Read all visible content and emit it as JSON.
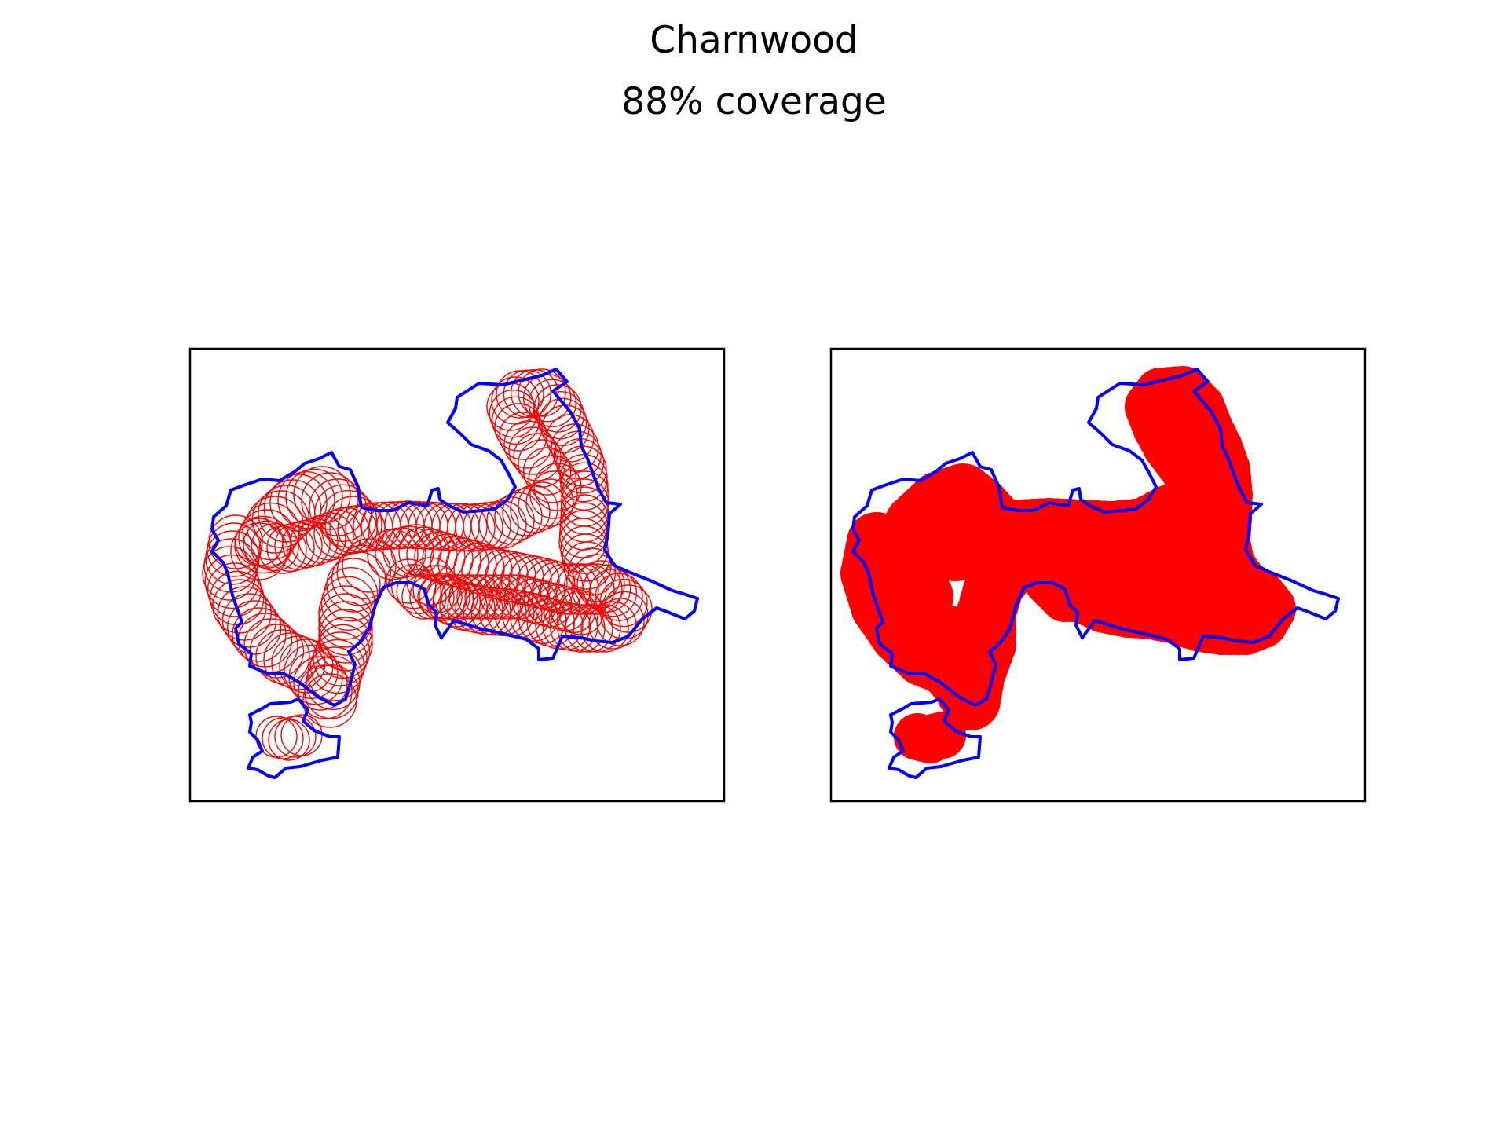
{
  "figure": {
    "title": "Charnwood",
    "subtitle": "88% coverage"
  },
  "colors": {
    "boundary": "#0000ff",
    "circles": "#ff0000",
    "union_fill": "#ff0000",
    "axes_frame": "#000000"
  },
  "panels": [
    {
      "name": "individual-circles",
      "style": "outline"
    },
    {
      "name": "circle-union",
      "style": "filled"
    }
  ]
}
